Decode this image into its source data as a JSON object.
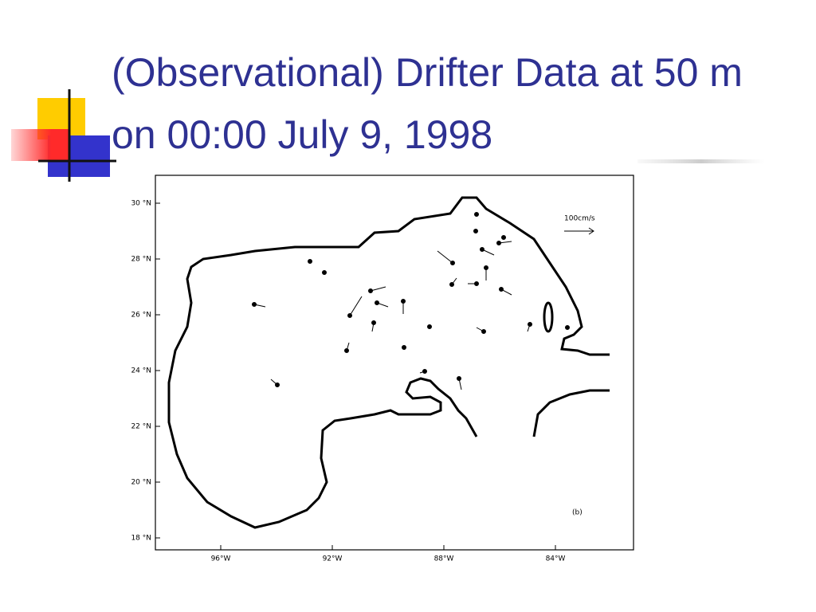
{
  "title": "(Observational) Drifter  Data at 50 m on 00:00 July 9, 1998",
  "figure": {
    "yticks": [
      {
        "value": 30,
        "label": "30 °N"
      },
      {
        "value": 28,
        "label": "28 °N"
      },
      {
        "value": 26,
        "label": "26 °N"
      },
      {
        "value": 24,
        "label": "24 °N"
      },
      {
        "value": 22,
        "label": "22 °N"
      },
      {
        "value": 20,
        "label": "20 °N"
      },
      {
        "value": 18,
        "label": "18 °N"
      }
    ],
    "xticks": [
      {
        "value": 96,
        "label": "96°W"
      },
      {
        "value": 92,
        "label": "92°W"
      },
      {
        "value": 88,
        "label": "88°W"
      },
      {
        "value": 84,
        "label": "84°W"
      }
    ],
    "scale_label": "100cm/s",
    "panel_label": "(b)"
  }
}
